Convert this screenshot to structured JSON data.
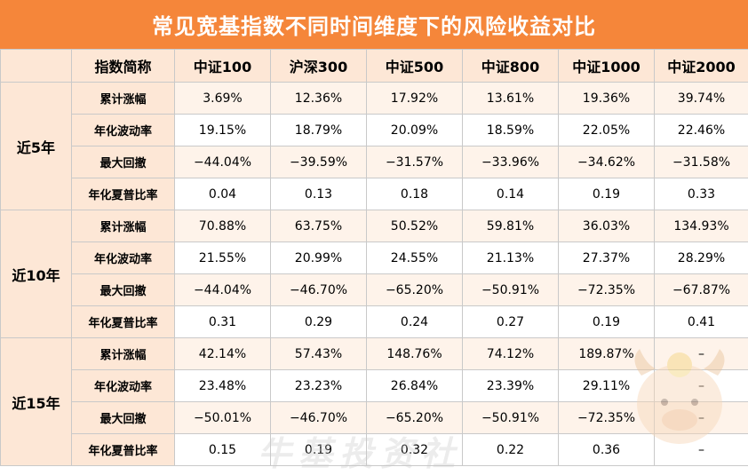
{
  "title": "常见宽基指数不同时间维度下的风险收益对比",
  "header": [
    "指数简称",
    "中证100",
    "沪深300",
    "中证500",
    "中证800",
    "中证1000",
    "中证2000"
  ],
  "groups": [
    {
      "label": "近5年",
      "rows": [
        {
          "metric": "累计涨幅",
          "values": [
            "3.69%",
            "12.36%",
            "17.92%",
            "13.61%",
            "19.36%",
            "39.74%"
          ]
        },
        {
          "metric": "年化波动率",
          "values": [
            "19.15%",
            "18.79%",
            "20.09%",
            "18.59%",
            "22.05%",
            "22.46%"
          ]
        },
        {
          "metric": "最大回撤",
          "values": [
            "−44.04%",
            "−39.59%",
            "−31.57%",
            "−33.96%",
            "−34.62%",
            "−31.58%"
          ]
        },
        {
          "metric": "年化夏普比率",
          "values": [
            "0.04",
            "0.13",
            "0.18",
            "0.14",
            "0.19",
            "0.33"
          ]
        }
      ]
    },
    {
      "label": "近10年",
      "rows": [
        {
          "metric": "累计涨幅",
          "values": [
            "70.88%",
            "63.75%",
            "50.52%",
            "59.81%",
            "36.03%",
            "134.93%"
          ]
        },
        {
          "metric": "年化波动率",
          "values": [
            "21.55%",
            "20.99%",
            "24.55%",
            "21.13%",
            "27.37%",
            "28.29%"
          ]
        },
        {
          "metric": "最大回撤",
          "values": [
            "−44.04%",
            "−46.70%",
            "−65.20%",
            "−50.91%",
            "−72.35%",
            "−67.87%"
          ]
        },
        {
          "metric": "年化夏普比率",
          "values": [
            "0.31",
            "0.29",
            "0.24",
            "0.27",
            "0.19",
            "0.41"
          ]
        }
      ]
    },
    {
      "label": "近15年",
      "rows": [
        {
          "metric": "累计涨幅",
          "values": [
            "42.14%",
            "57.43%",
            "148.76%",
            "74.12%",
            "189.87%",
            "–"
          ]
        },
        {
          "metric": "年化波动率",
          "values": [
            "23.48%",
            "23.23%",
            "26.84%",
            "23.39%",
            "29.11%",
            "–"
          ]
        },
        {
          "metric": "最大回撤",
          "values": [
            "−50.01%",
            "−46.70%",
            "−65.20%",
            "−50.91%",
            "−72.35%",
            "–"
          ]
        },
        {
          "metric": "年化夏普比率",
          "values": [
            "0.15",
            "0.19",
            "0.32",
            "0.22",
            "0.36",
            "–"
          ]
        }
      ]
    }
  ],
  "watermark": "牛基投资社",
  "colors": {
    "title_bg": "#f5863a",
    "header_bg": "#fde7d6",
    "row_tint": "#fef3ea"
  }
}
